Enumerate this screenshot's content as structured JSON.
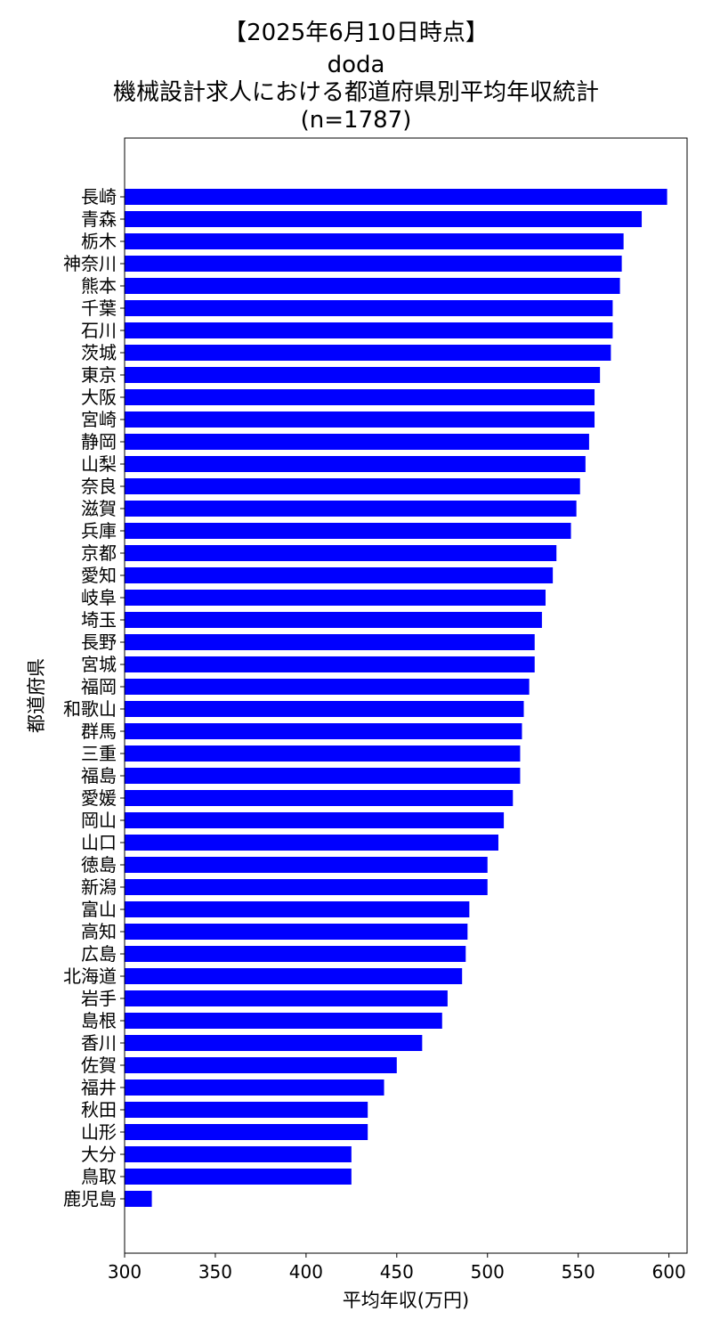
{
  "chart_data": {
    "type": "bar",
    "orientation": "horizontal",
    "title_lines": [
      "【2025年6月10日時点】",
      "doda",
      "機械設計求人における都道府県別平均年収統計",
      "(n=1787)"
    ],
    "xlabel": "平均年収(万円)",
    "ylabel": "都道府県",
    "xlim": [
      300,
      610
    ],
    "x_ticks": [
      300,
      350,
      400,
      450,
      500,
      550,
      600
    ],
    "grid": false,
    "legend": "none",
    "bar_color": "#0000ff",
    "categories": [
      "長崎",
      "青森",
      "栃木",
      "神奈川",
      "熊本",
      "千葉",
      "石川",
      "茨城",
      "東京",
      "大阪",
      "宮崎",
      "静岡",
      "山梨",
      "奈良",
      "滋賀",
      "兵庫",
      "京都",
      "愛知",
      "岐阜",
      "埼玉",
      "長野",
      "宮城",
      "福岡",
      "和歌山",
      "群馬",
      "三重",
      "福島",
      "愛媛",
      "岡山",
      "山口",
      "徳島",
      "新潟",
      "富山",
      "高知",
      "広島",
      "北海道",
      "岩手",
      "島根",
      "香川",
      "佐賀",
      "福井",
      "秋田",
      "山形",
      "大分",
      "鳥取",
      "鹿児島"
    ],
    "values": [
      599,
      585,
      575,
      574,
      573,
      569,
      569,
      568,
      562,
      559,
      559,
      556,
      554,
      551,
      549,
      546,
      538,
      536,
      532,
      530,
      526,
      526,
      523,
      520,
      519,
      518,
      518,
      514,
      509,
      506,
      500,
      500,
      490,
      489,
      488,
      486,
      478,
      475,
      464,
      450,
      443,
      434,
      434,
      425,
      425,
      315
    ]
  }
}
